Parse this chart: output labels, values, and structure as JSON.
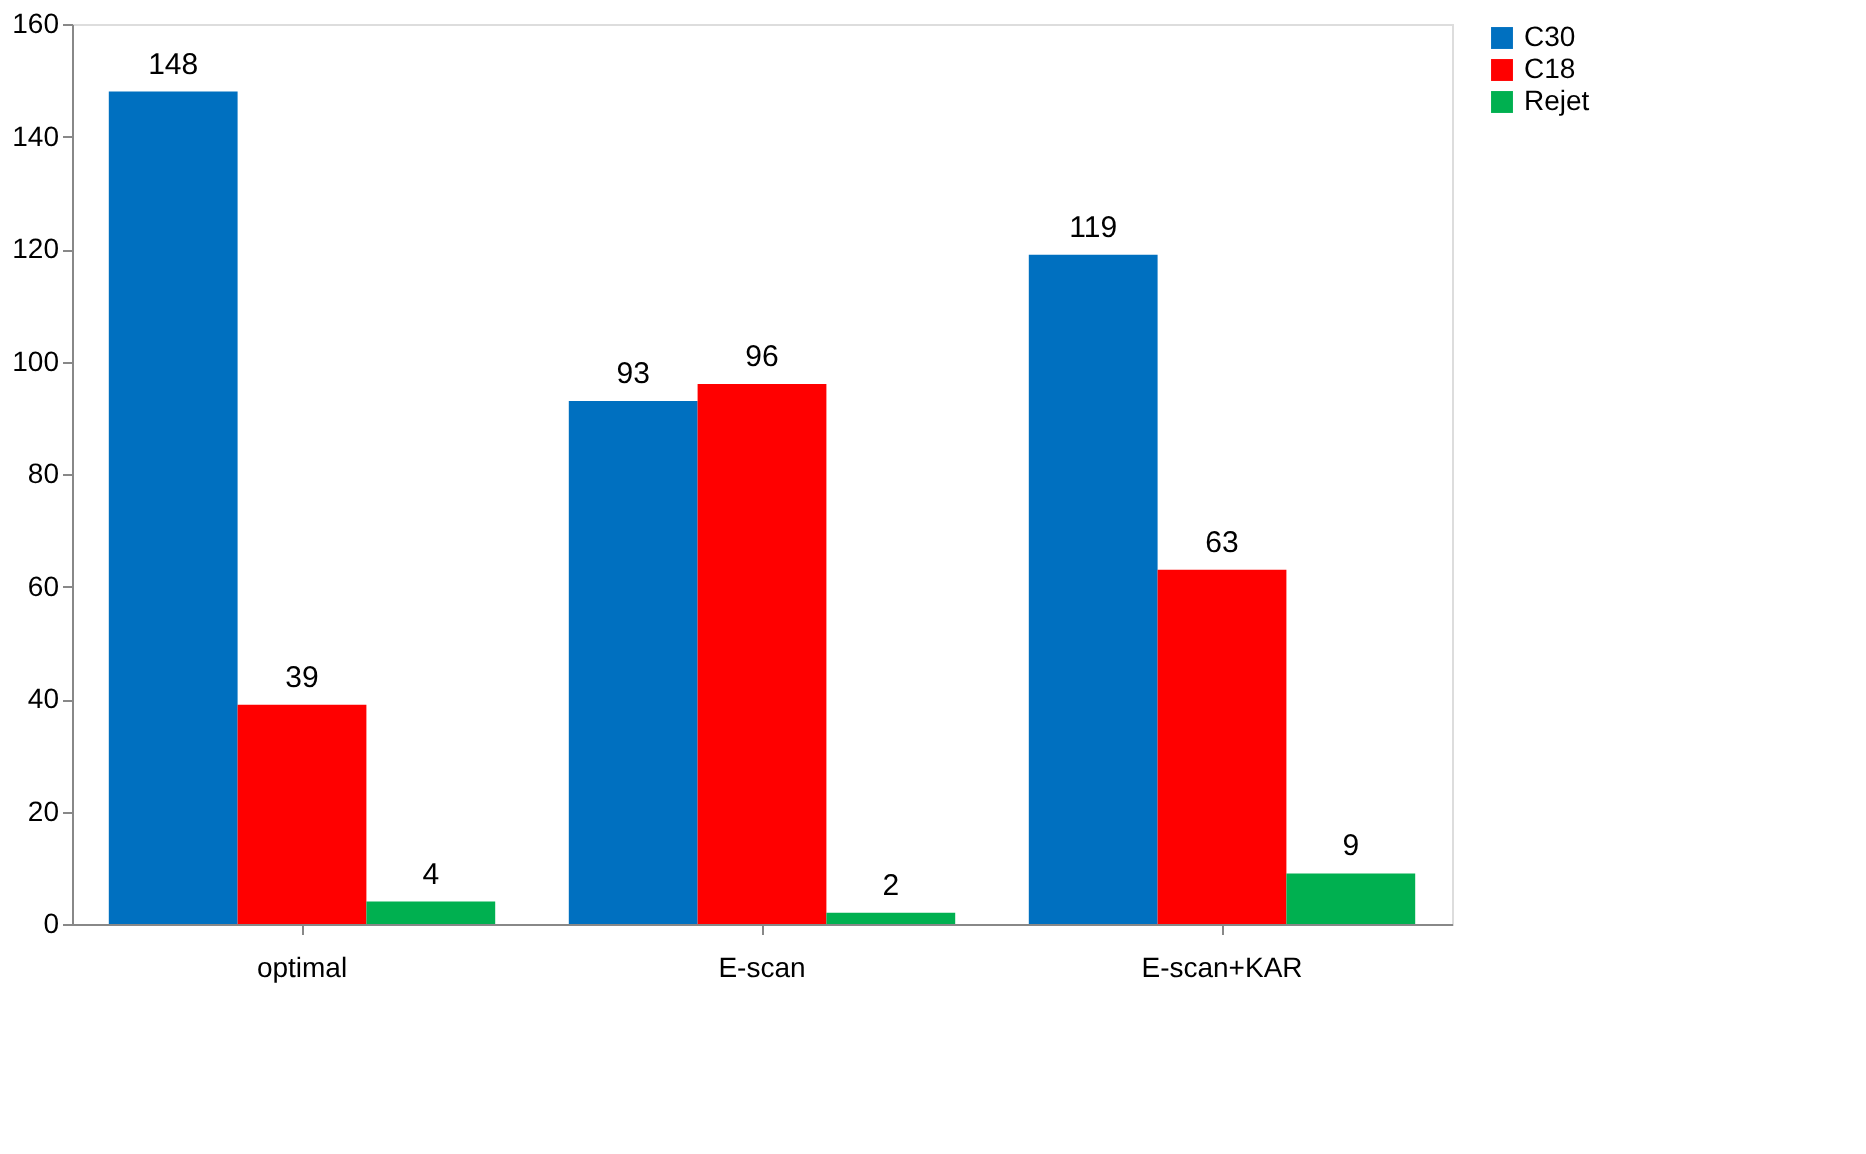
{
  "chart_data": {
    "type": "bar",
    "categories": [
      "optimal",
      "E-scan",
      "E-scan+KAR"
    ],
    "series": [
      {
        "name": "C30",
        "color": "#0070c0",
        "values": [
          148,
          93,
          119
        ]
      },
      {
        "name": "C18",
        "color": "#ff0000",
        "values": [
          39,
          96,
          63
        ]
      },
      {
        "name": "Rejet",
        "color": "#00b050",
        "values": [
          4,
          2,
          9
        ]
      }
    ],
    "ylim": [
      0,
      160
    ],
    "yticks": [
      0,
      20,
      40,
      60,
      80,
      100,
      120,
      140,
      160
    ],
    "grid": false,
    "legend": "right",
    "data_labels": true
  }
}
